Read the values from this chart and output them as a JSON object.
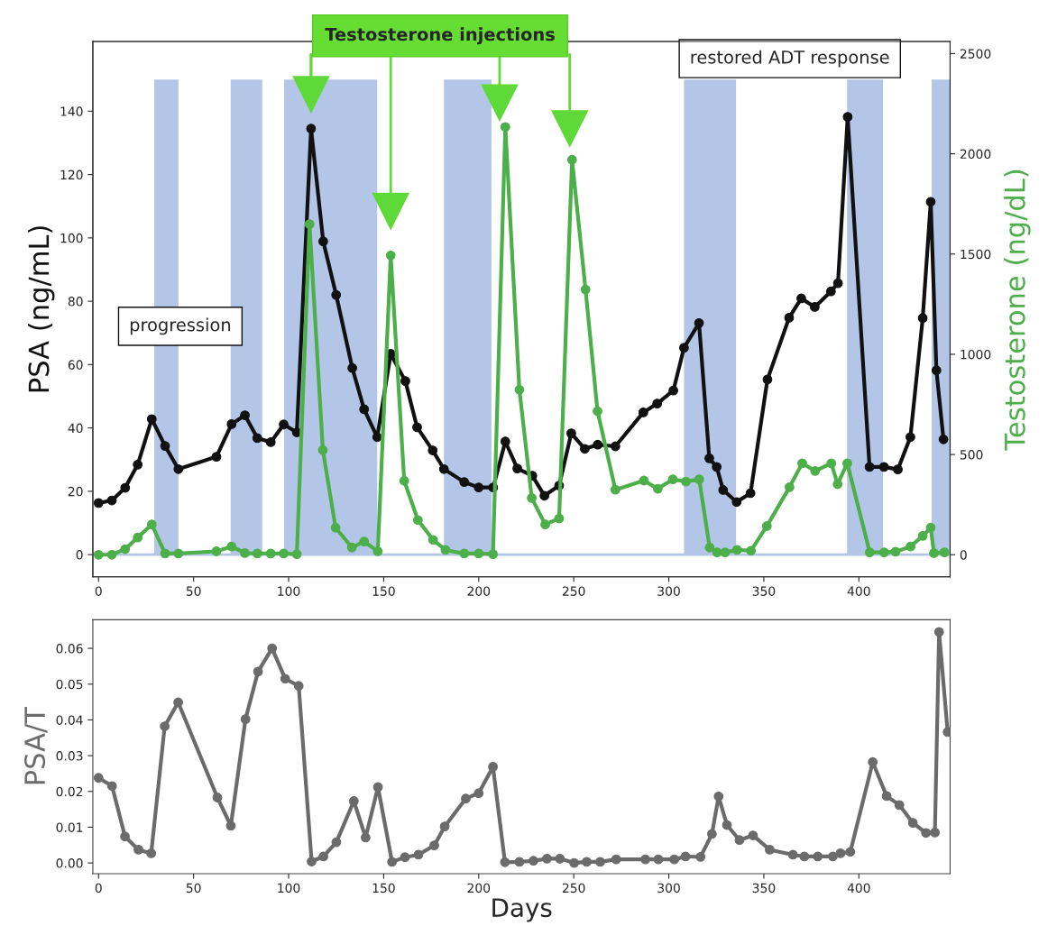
{
  "chart_data": [
    {
      "type": "line",
      "ylabel": "PSA (ng/mL)",
      "y2label": "Testosterone (ng/dL)",
      "annotations": [
        {
          "text": "Testosterone injections",
          "x": 111.8,
          "y": 145.2
        },
        "progression",
        "restored ADT response"
      ],
      "xlim": [
        -3,
        448
      ],
      "xticks": [
        0,
        50,
        100,
        150,
        200,
        250,
        300,
        350,
        400
      ],
      "ylim": [
        -7,
        162
      ],
      "yticks": [
        0,
        20,
        40,
        60,
        80,
        100,
        120,
        140
      ],
      "y2lim": [
        -110,
        2560
      ],
      "y2ticks": [
        0,
        500,
        1000,
        1500,
        2000,
        2500
      ],
      "marker": "circle",
      "grid": false,
      "legend": false,
      "bands": [
        {
          "axis": "x",
          "from": 29.3,
          "to": 42,
          "color": "#b4c6e7"
        },
        {
          "axis": "x",
          "from": 69.5,
          "to": 86.1,
          "color": "#b4c6e7"
        },
        {
          "axis": "x",
          "from": 97.6,
          "to": 146.6,
          "color": "#b4c6e7"
        },
        {
          "axis": "x",
          "from": 181.7,
          "to": 206.7,
          "color": "#b4c6e7"
        },
        {
          "axis": "x",
          "from": 308,
          "to": 335.4,
          "color": "#b4c6e7"
        },
        {
          "axis": "x",
          "from": 393.8,
          "to": 412.7,
          "color": "#b4c6e7"
        },
        {
          "axis": "x",
          "from": 438.3,
          "to": 448,
          "color": "#b4c6e7"
        }
      ],
      "ref_lines": [
        {
          "axis": "y",
          "value": 0,
          "color": "#b4c6e7"
        }
      ],
      "series": [
        {
          "color": "#111111",
          "x": [
            0,
            7,
            14,
            20.6,
            28,
            35,
            42,
            62,
            70,
            77,
            83.5,
            90.6,
            97.4,
            104.3,
            111.8,
            118.2,
            125,
            133.5,
            139.7,
            146.6,
            153.7,
            161.4,
            167.6,
            175.8,
            181.7,
            192.4,
            200,
            207.6,
            214,
            220.3,
            228.2,
            234.6,
            242.3,
            248.7,
            255.8,
            262.6,
            271.9,
            286.6,
            293.9,
            302.4,
            308,
            315.9,
            321.3,
            325.2,
            328.6,
            335.7,
            343,
            351.9,
            363.3,
            369.7,
            376.8,
            385.3,
            389,
            394.1,
            405.6,
            413.2,
            420.5,
            427.1,
            433.6,
            437.8,
            440.8,
            444.5
          ],
          "values": [
            16.3,
            17.1,
            21.1,
            28.4,
            42.8,
            34.3,
            27.0,
            30.9,
            41.2,
            44.0,
            36.8,
            35.5,
            41.1,
            38.6,
            134.5,
            98.9,
            82.0,
            58.9,
            45.9,
            37.1,
            63.4,
            54.8,
            40.2,
            32.9,
            27.0,
            22.9,
            21.2,
            21.2,
            35.7,
            27.2,
            24.9,
            18.6,
            21.8,
            38.3,
            33.4,
            34.7,
            34.2,
            44.9,
            47.7,
            51.8,
            65.3,
            73.1,
            30.4,
            27.7,
            20.4,
            16.6,
            19.4,
            55.3,
            74.8,
            80.9,
            78.2,
            83.1,
            85.7,
            138.2,
            27.7,
            27.7,
            26.9,
            37.1,
            74.7,
            111.4,
            58.2,
            36.4
          ]
        },
        {
          "color": "#4daf4a",
          "axis": "y2",
          "x": [
            0,
            7,
            14,
            20.6,
            28,
            35,
            42,
            62,
            70,
            77,
            83.5,
            90.6,
            97.4,
            104.3,
            111,
            118,
            124.7,
            133.3,
            139.7,
            146.9,
            153.7,
            160.8,
            168,
            176,
            182.5,
            192.4,
            200,
            207.5,
            214,
            221.4,
            227.9,
            235,
            242.3,
            249.1,
            256.2,
            262.5,
            271.9,
            286.9,
            294.2,
            302.1,
            309,
            316,
            321.5,
            325.4,
            329.6,
            335.9,
            343.2,
            351.6,
            363.5,
            370.2,
            377,
            385.5,
            388.8,
            393.9,
            405.7,
            413.3,
            419.3,
            427.2,
            433.6,
            437.8,
            439.5,
            445
          ],
          "values": [
            0,
            0,
            28,
            86,
            151,
            6,
            6,
            17,
            41,
            8,
            6,
            6,
            6,
            3,
            1649,
            522,
            135,
            36,
            66,
            17,
            1493,
            369,
            173,
            74,
            24,
            6,
            6,
            3,
            2134,
            823,
            283,
            151,
            181,
            1970,
            1323,
            716,
            324,
            370,
            329,
            376,
            365,
            376,
            36,
            12,
            12,
            24,
            20,
            143,
            337,
            456,
            418,
            456,
            352,
            456,
            12,
            12,
            15,
            41,
            94,
            135,
            8,
            12
          ]
        },
        {
          "type": "scatter",
          "marker": "triangle",
          "color": "#5ed937",
          "x": [
            111.8,
            153.7,
            211,
            247.9
          ],
          "values": [
            145.2,
            108.3,
            142.6,
            134.4
          ]
        }
      ]
    },
    {
      "type": "line",
      "xlabel": "Days",
      "ylabel": "PSA/T",
      "xlim": [
        -3,
        448
      ],
      "xticks": [
        0,
        50,
        100,
        150,
        200,
        250,
        300,
        350,
        400
      ],
      "ylim": [
        -0.003,
        0.068
      ],
      "yticks": [
        {
          "value": 0,
          "label": "0.00"
        },
        {
          "value": 0.01,
          "label": "0.01"
        },
        {
          "value": 0.02,
          "label": "0.02"
        },
        {
          "value": 0.03,
          "label": "0.03"
        },
        {
          "value": 0.04,
          "label": "0.04"
        },
        {
          "value": 0.05,
          "label": "0.05"
        },
        {
          "value": 0.06,
          "label": "0.06"
        }
      ],
      "marker": "circle",
      "grid": false,
      "legend": false,
      "series": [
        {
          "color": "#6b6b6b",
          "x": [
            0,
            7.1,
            13.9,
            21,
            27.7,
            34.8,
            41.9,
            62.5,
            69.6,
            77.3,
            83.9,
            91.3,
            98.2,
            105.3,
            112.1,
            118.3,
            125.1,
            134.3,
            140.5,
            147,
            154.4,
            161.2,
            168.3,
            176.6,
            182.1,
            193.2,
            200,
            207.5,
            213.8,
            221.4,
            228.8,
            235.9,
            242.7,
            250.2,
            256.8,
            263.9,
            272.3,
            287.7,
            294.5,
            302.9,
            308.8,
            316.7,
            322.7,
            326.2,
            330.6,
            337.2,
            344.3,
            353.1,
            365.3,
            371.3,
            378.4,
            386.3,
            390.3,
            395.5,
            407.3,
            414.6,
            421.3,
            428.4,
            435.3,
            440,
            442.2,
            446.7
          ],
          "values": [
            0.0238,
            0.0215,
            0.0074,
            0.0037,
            0.0027,
            0.0382,
            0.0449,
            0.0183,
            0.0104,
            0.0402,
            0.0535,
            0.06,
            0.0515,
            0.0495,
            0.0004,
            0.0018,
            0.0058,
            0.0173,
            0.0071,
            0.0212,
            0.0003,
            0.0016,
            0.0023,
            0.0049,
            0.0102,
            0.018,
            0.0195,
            0.0269,
            0.0002,
            0.0003,
            0.0006,
            0.0012,
            0.0012,
            0.0,
            0.0003,
            0.0003,
            0.001,
            0.001,
            0.001,
            0.001,
            0.0018,
            0.0017,
            0.0081,
            0.0186,
            0.0106,
            0.0064,
            0.0077,
            0.0037,
            0.0023,
            0.0018,
            0.0018,
            0.0018,
            0.0027,
            0.0031,
            0.0282,
            0.0187,
            0.0162,
            0.0112,
            0.0084,
            0.0085,
            0.0646,
            0.0366
          ]
        }
      ]
    }
  ]
}
